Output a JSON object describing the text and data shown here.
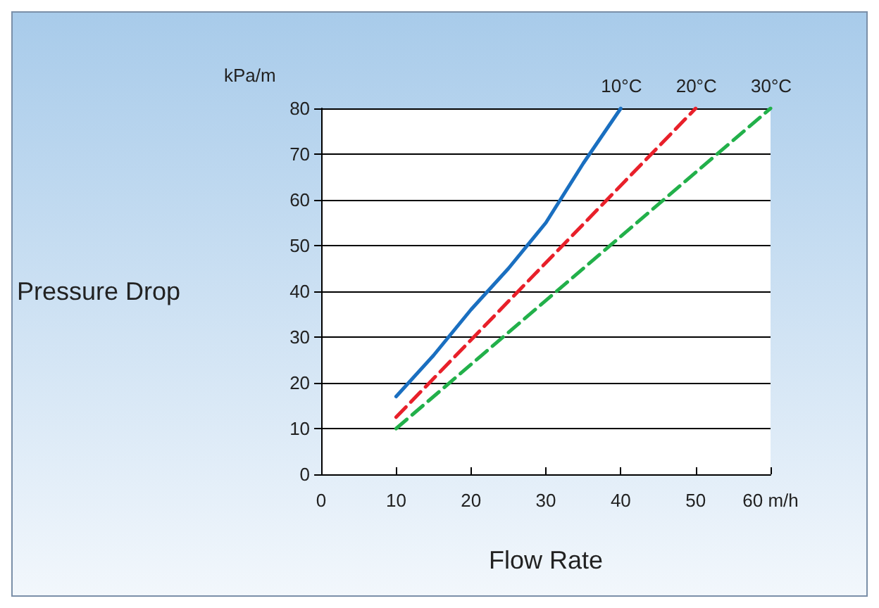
{
  "chart_data": {
    "type": "line",
    "xlabel": "Flow Rate",
    "ylabel": "Pressure Drop",
    "annotations": [
      "kPa/m"
    ],
    "xlim": [
      0,
      60
    ],
    "xticks": [
      0,
      10,
      20,
      30,
      40,
      50,
      {
        "value": 60,
        "label": "60 m/h"
      }
    ],
    "ylim": [
      0,
      80
    ],
    "yticks": [
      0,
      10,
      20,
      30,
      40,
      50,
      60,
      70,
      80
    ],
    "grid": "y",
    "legend": false,
    "marker": "none",
    "series": [
      {
        "name": "10°C",
        "color": "#1a6fc0",
        "line_style": "solid",
        "x": [
          10,
          15,
          20,
          25,
          30,
          35,
          40
        ],
        "values": [
          17,
          26,
          36,
          45,
          55,
          68,
          80
        ]
      },
      {
        "name": "20°C",
        "color": "#e8202a",
        "line_style": "dashed",
        "x": [
          10,
          50
        ],
        "values": [
          12.5,
          80
        ]
      },
      {
        "name": "30°C",
        "color": "#22b04a",
        "line_style": "dashed",
        "x": [
          10,
          60
        ],
        "values": [
          10,
          80
        ]
      }
    ]
  }
}
